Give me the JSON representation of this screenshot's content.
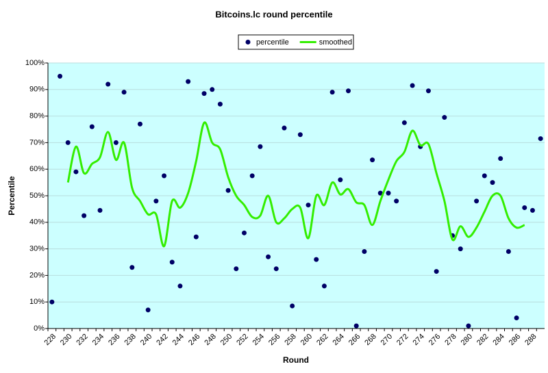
{
  "chart_data": {
    "type": "scatter-line",
    "title": "Bitcoins.lc round percentile",
    "x_label": "Round",
    "y_label": "Percentile",
    "categories": [
      228,
      null,
      230,
      null,
      232,
      null,
      234,
      null,
      236,
      null,
      238,
      null,
      240,
      null,
      242,
      null,
      244,
      null,
      246,
      null,
      248,
      null,
      250,
      null,
      252,
      null,
      254,
      null,
      256,
      null,
      258,
      null,
      260,
      null,
      262,
      null,
      264,
      null,
      266,
      null,
      268,
      null,
      270,
      null,
      272,
      null,
      274,
      null,
      276,
      null,
      278,
      null,
      280,
      null,
      282,
      null,
      284,
      null,
      286,
      null,
      288,
      null
    ],
    "series": [
      {
        "name": "percentile",
        "color": "#000066",
        "style": "points",
        "values": [
          10,
          95,
          70,
          59,
          42.5,
          76,
          44.5,
          92,
          70,
          89,
          23,
          77,
          7,
          48,
          57.5,
          25,
          16,
          93,
          34.5,
          88.5,
          90,
          84.5,
          52,
          22.5,
          36,
          57.5,
          68.5,
          27,
          22.5,
          75.5,
          8.5,
          73,
          46.5,
          26,
          16,
          89,
          56,
          89.5,
          1,
          29,
          63.5,
          51,
          51,
          48,
          77.5,
          91.5,
          68.5,
          89.5,
          21.5,
          79.5,
          35,
          30,
          1,
          48,
          57.5,
          55,
          64,
          29,
          4,
          45.5,
          44.5,
          71.5
        ]
      },
      {
        "name": "smoothed",
        "color": "#33ee00",
        "style": "line",
        "values": [
          null,
          null,
          55,
          68.5,
          58.5,
          62,
          64.5,
          74,
          63.5,
          70,
          53,
          48,
          43,
          43,
          31,
          48,
          45.5,
          51,
          63,
          77.5,
          70,
          67.5,
          57,
          50,
          46.5,
          42,
          42.5,
          50,
          40,
          41.5,
          45,
          45.5,
          34,
          50,
          46.5,
          55,
          50.5,
          52.5,
          47.5,
          46.5,
          39,
          48,
          56,
          63,
          66.5,
          74.5,
          69,
          69.5,
          58.5,
          48,
          33.5,
          38.5,
          34.5,
          38,
          44,
          50,
          50,
          41.5,
          38,
          39,
          null,
          null
        ]
      }
    ],
    "ylim": [
      0,
      100
    ],
    "yticks": [
      {
        "value": 0,
        "label": "0%"
      },
      {
        "value": 10,
        "label": "10%"
      },
      {
        "value": 20,
        "label": "20%"
      },
      {
        "value": 30,
        "label": "30%"
      },
      {
        "value": 40,
        "label": "40%"
      },
      {
        "value": 50,
        "label": "50%"
      },
      {
        "value": 60,
        "label": "60%"
      },
      {
        "value": 70,
        "label": "70%"
      },
      {
        "value": 80,
        "label": "80%"
      },
      {
        "value": 90,
        "label": "90%"
      },
      {
        "value": 100,
        "label": "100%"
      }
    ],
    "grid": true,
    "legend": "top"
  }
}
